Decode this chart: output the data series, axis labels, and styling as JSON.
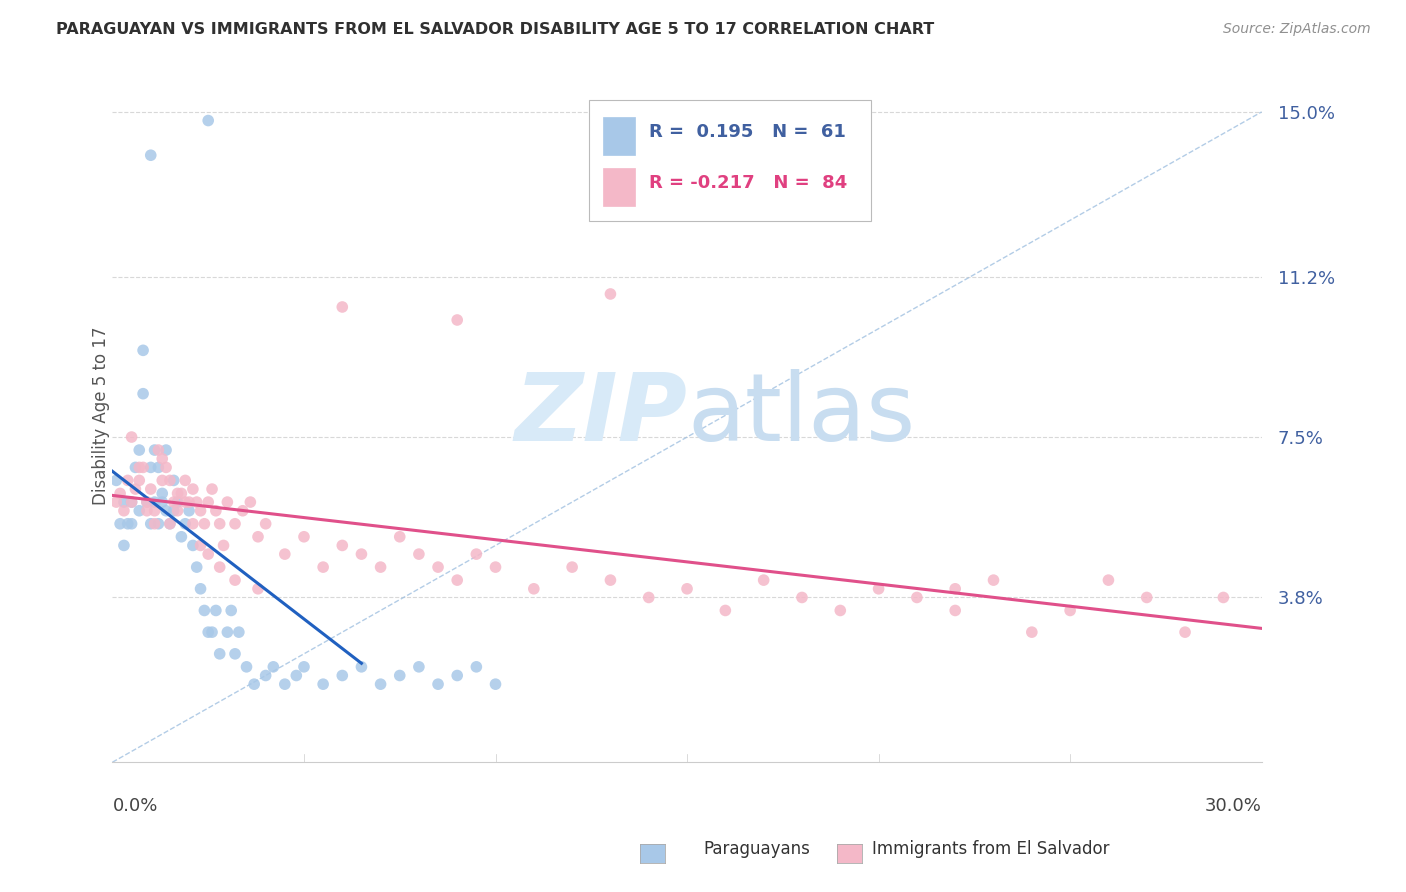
{
  "title": "PARAGUAYAN VS IMMIGRANTS FROM EL SALVADOR DISABILITY AGE 5 TO 17 CORRELATION CHART",
  "source": "Source: ZipAtlas.com",
  "ylabel": "Disability Age 5 to 17",
  "xlim": [
    0.0,
    0.3
  ],
  "ylim": [
    0.0,
    0.16
  ],
  "ytick_vals": [
    0.038,
    0.075,
    0.112,
    0.15
  ],
  "ytick_labels": [
    "3.8%",
    "7.5%",
    "11.2%",
    "15.0%"
  ],
  "xtick_vals": [
    0.0,
    0.05,
    0.1,
    0.15,
    0.2,
    0.25,
    0.3
  ],
  "R_blue": 0.195,
  "N_blue": 61,
  "R_pink": -0.217,
  "N_pink": 84,
  "legend_label_blue": "Paraguayans",
  "legend_label_pink": "Immigrants from El Salvador",
  "blue_color": "#a8c8e8",
  "pink_color": "#f4b8c8",
  "blue_line_color": "#2060c0",
  "pink_line_color": "#e0508a",
  "diag_line_color": "#a0c0e0",
  "watermark_color": "#d8eaf8",
  "text_color": "#4060a0",
  "title_color": "#303030",
  "source_color": "#909090",
  "grid_color": "#d8d8d8",
  "blue_x": [
    0.001,
    0.002,
    0.003,
    0.003,
    0.004,
    0.005,
    0.005,
    0.006,
    0.007,
    0.007,
    0.008,
    0.008,
    0.009,
    0.01,
    0.01,
    0.011,
    0.011,
    0.012,
    0.012,
    0.013,
    0.013,
    0.014,
    0.014,
    0.015,
    0.016,
    0.016,
    0.017,
    0.018,
    0.019,
    0.02,
    0.021,
    0.022,
    0.023,
    0.024,
    0.025,
    0.026,
    0.027,
    0.028,
    0.03,
    0.031,
    0.032,
    0.033,
    0.035,
    0.037,
    0.04,
    0.042,
    0.045,
    0.048,
    0.05,
    0.055,
    0.06,
    0.065,
    0.07,
    0.075,
    0.08,
    0.085,
    0.09,
    0.095,
    0.1,
    0.01,
    0.025
  ],
  "blue_y": [
    0.065,
    0.055,
    0.06,
    0.05,
    0.055,
    0.06,
    0.055,
    0.068,
    0.072,
    0.058,
    0.095,
    0.085,
    0.06,
    0.068,
    0.055,
    0.072,
    0.06,
    0.068,
    0.055,
    0.062,
    0.06,
    0.058,
    0.072,
    0.055,
    0.065,
    0.058,
    0.06,
    0.052,
    0.055,
    0.058,
    0.05,
    0.045,
    0.04,
    0.035,
    0.03,
    0.03,
    0.035,
    0.025,
    0.03,
    0.035,
    0.025,
    0.03,
    0.022,
    0.018,
    0.02,
    0.022,
    0.018,
    0.02,
    0.022,
    0.018,
    0.02,
    0.022,
    0.018,
    0.02,
    0.022,
    0.018,
    0.02,
    0.022,
    0.018,
    0.14,
    0.148
  ],
  "pink_x": [
    0.001,
    0.002,
    0.003,
    0.004,
    0.005,
    0.006,
    0.007,
    0.008,
    0.009,
    0.01,
    0.011,
    0.012,
    0.013,
    0.014,
    0.015,
    0.016,
    0.017,
    0.018,
    0.019,
    0.02,
    0.021,
    0.022,
    0.023,
    0.024,
    0.025,
    0.026,
    0.027,
    0.028,
    0.029,
    0.03,
    0.032,
    0.034,
    0.036,
    0.038,
    0.04,
    0.045,
    0.05,
    0.055,
    0.06,
    0.065,
    0.07,
    0.075,
    0.08,
    0.085,
    0.09,
    0.095,
    0.1,
    0.11,
    0.12,
    0.13,
    0.14,
    0.15,
    0.16,
    0.17,
    0.18,
    0.19,
    0.2,
    0.21,
    0.22,
    0.23,
    0.24,
    0.25,
    0.26,
    0.27,
    0.28,
    0.29,
    0.005,
    0.007,
    0.009,
    0.011,
    0.013,
    0.015,
    0.017,
    0.019,
    0.021,
    0.023,
    0.025,
    0.028,
    0.032,
    0.038,
    0.06,
    0.09,
    0.13,
    0.22
  ],
  "pink_y": [
    0.06,
    0.062,
    0.058,
    0.065,
    0.06,
    0.063,
    0.065,
    0.068,
    0.06,
    0.063,
    0.058,
    0.072,
    0.065,
    0.068,
    0.055,
    0.06,
    0.058,
    0.062,
    0.065,
    0.06,
    0.063,
    0.06,
    0.058,
    0.055,
    0.06,
    0.063,
    0.058,
    0.055,
    0.05,
    0.06,
    0.055,
    0.058,
    0.06,
    0.052,
    0.055,
    0.048,
    0.052,
    0.045,
    0.05,
    0.048,
    0.045,
    0.052,
    0.048,
    0.045,
    0.042,
    0.048,
    0.045,
    0.04,
    0.045,
    0.042,
    0.038,
    0.04,
    0.035,
    0.042,
    0.038,
    0.035,
    0.04,
    0.038,
    0.035,
    0.042,
    0.03,
    0.035,
    0.042,
    0.038,
    0.03,
    0.038,
    0.075,
    0.068,
    0.058,
    0.055,
    0.07,
    0.065,
    0.062,
    0.06,
    0.055,
    0.05,
    0.048,
    0.045,
    0.042,
    0.04,
    0.105,
    0.102,
    0.108,
    0.04
  ]
}
